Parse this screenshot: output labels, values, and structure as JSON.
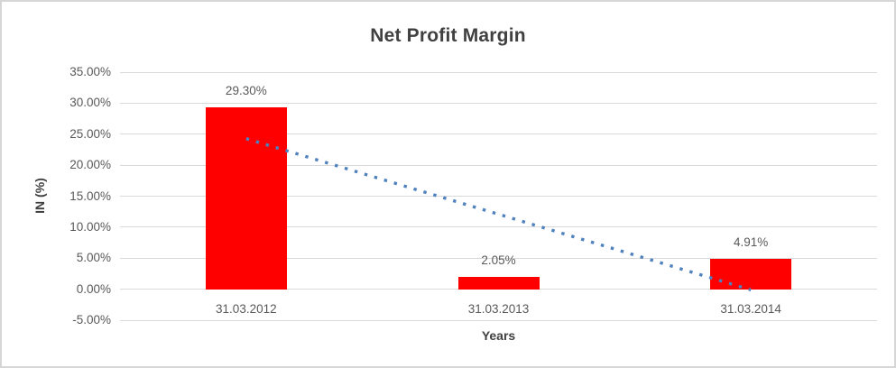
{
  "chart_data": {
    "type": "bar",
    "title": "Net Profit Margin",
    "xlabel": "Years",
    "ylabel": "IN (%)",
    "categories": [
      "31.03.2012",
      "31.03.2013",
      "31.03.2014"
    ],
    "values": [
      29.3,
      2.05,
      4.91
    ],
    "data_labels": [
      "29.30%",
      "2.05%",
      "4.91%"
    ],
    "ylim": [
      -5,
      35
    ],
    "ytick_step": 5,
    "ytick_labels": [
      "35.00%",
      "30.00%",
      "25.00%",
      "20.00%",
      "15.00%",
      "10.00%",
      "5.00%",
      "0.00%",
      "-5.00%"
    ],
    "grid": true,
    "legend": "none",
    "bar_color": "#ff0000",
    "trendline": {
      "type": "linear",
      "style": "dotted",
      "color": "#4e81bd"
    },
    "colors": {
      "gridline": "#d9d9d9",
      "title_text": "#404040",
      "axis_text": "#595959",
      "frame_border": "#d6d6d6"
    }
  }
}
